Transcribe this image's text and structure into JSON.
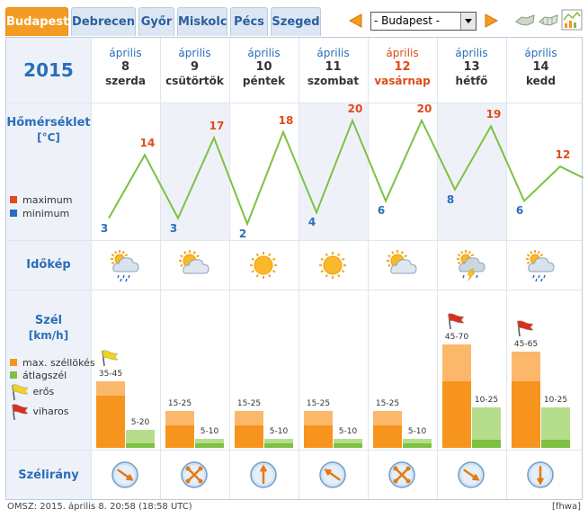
{
  "tabs": [
    "Budapest",
    "Debrecen",
    "Győr",
    "Miskolc",
    "Pécs",
    "Szeged"
  ],
  "active_tab": 0,
  "city_select": {
    "value": "- Budapest -"
  },
  "year": "2015",
  "days": [
    {
      "month": "április",
      "day": "8",
      "weekday": "szerda",
      "tmax": 14,
      "tmin": 3,
      "weather": "cloud-rain",
      "gust": "35-45",
      "gust_val": 45,
      "avg": "5-20",
      "avg_val": 20,
      "flag": "yellow",
      "dir": "se"
    },
    {
      "month": "április",
      "day": "9",
      "weekday": "csütörtök",
      "tmax": 17,
      "tmin": 3,
      "weather": "sun-cloud",
      "gust": "15-25",
      "gust_val": 25,
      "avg": "5-10",
      "avg_val": 10,
      "flag": "",
      "dir": "var"
    },
    {
      "month": "április",
      "day": "10",
      "weekday": "péntek",
      "tmax": 18,
      "tmin": 2,
      "weather": "sun",
      "gust": "15-25",
      "gust_val": 25,
      "avg": "5-10",
      "avg_val": 10,
      "flag": "",
      "dir": "n"
    },
    {
      "month": "április",
      "day": "11",
      "weekday": "szombat",
      "tmax": 20,
      "tmin": 4,
      "weather": "sun",
      "gust": "15-25",
      "gust_val": 25,
      "avg": "5-10",
      "avg_val": 10,
      "flag": "",
      "dir": "nw"
    },
    {
      "month": "április",
      "day": "12",
      "weekday": "vasárnap",
      "tmax": 20,
      "tmin": 6,
      "weather": "sun-cloud",
      "gust": "15-25",
      "gust_val": 25,
      "avg": "5-10",
      "avg_val": 10,
      "flag": "",
      "dir": "var"
    },
    {
      "month": "április",
      "day": "13",
      "weekday": "hétfő",
      "tmax": 19,
      "tmin": 8,
      "weather": "storm",
      "gust": "45-70",
      "gust_val": 70,
      "avg": "10-25",
      "avg_val": 25,
      "flag": "red",
      "dir": "se"
    },
    {
      "month": "április",
      "day": "14",
      "weekday": "kedd",
      "tmax": 12,
      "tmin": 6,
      "weather": "cloud-rain",
      "gust": "45-65",
      "gust_val": 65,
      "avg": "10-25",
      "avg_val": 25,
      "flag": "red",
      "dir": "s"
    }
  ],
  "rows": {
    "temp_title": "Hőmérséklet",
    "temp_unit": "[°C]",
    "legend_max": "maximum",
    "legend_min": "minimum",
    "sky_title": "Időkép",
    "wind_title": "Szél",
    "wind_unit": "[km/h]",
    "legend_gust": "max. széllökés",
    "legend_avg": "átlagszél",
    "legend_strong": "erős",
    "legend_stormy": "viharos",
    "dir_title": "Szélirány"
  },
  "colors": {
    "line": "#7dc142",
    "max": "#e04b1a",
    "min": "#2a6ebb",
    "gust_light": "#fcb86a",
    "gust_dark": "#f7941d",
    "avg_light": "#b6dd8c",
    "avg_dark": "#7dc142",
    "accent": "#f39c24"
  },
  "footer": "OMSZ: 2015. április 8. 20:58 (18:58  UTC)",
  "footer_right": "[fhwa]"
}
